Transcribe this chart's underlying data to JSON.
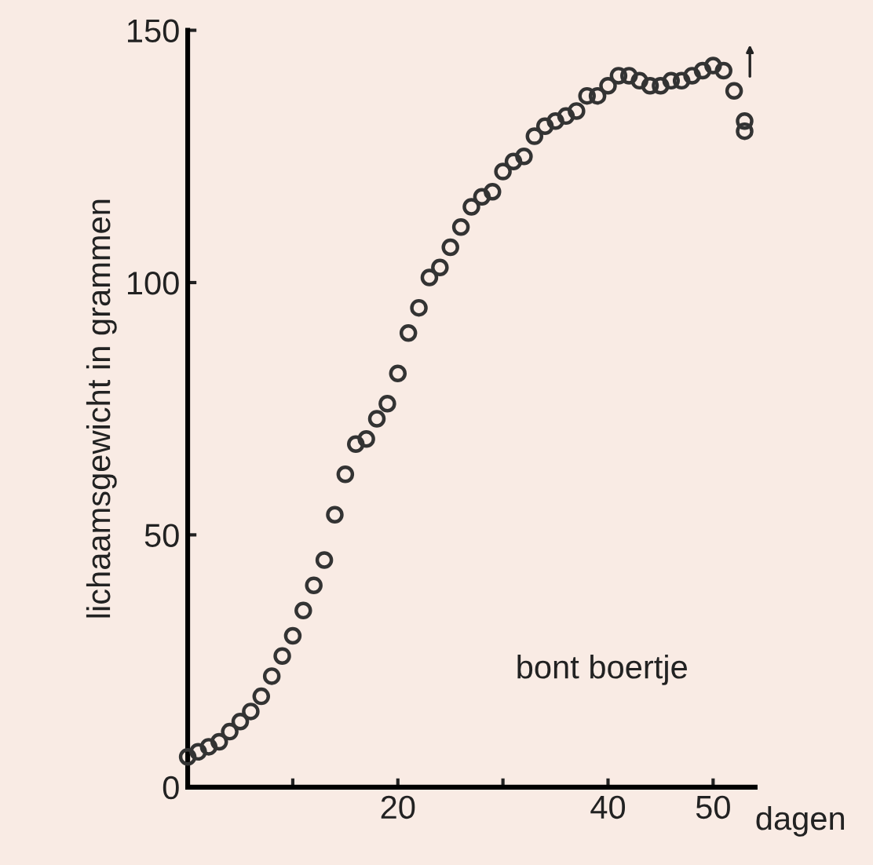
{
  "chart_data": {
    "type": "scatter",
    "xlabel": "dagen",
    "ylabel": "lichaamsgewicht in grammen",
    "annotations": [
      "bont boertje"
    ],
    "x": [
      0,
      1,
      2,
      3,
      4,
      5,
      6,
      7,
      8,
      9,
      10,
      11,
      12,
      13,
      14,
      15,
      16,
      17,
      18,
      19,
      20,
      21,
      22,
      23,
      24,
      25,
      26,
      27,
      28,
      29,
      30,
      31,
      32,
      33,
      34,
      35,
      36,
      37,
      38,
      39,
      40,
      41,
      42,
      43,
      44,
      45,
      46,
      47,
      48,
      49,
      50,
      51,
      52,
      53,
      53
    ],
    "series": [
      {
        "color": "#333333",
        "values": [
          6,
          7,
          8,
          9,
          11,
          13,
          15,
          18,
          22,
          26,
          30,
          35,
          40,
          45,
          54,
          62,
          68,
          69,
          73,
          76,
          82,
          90,
          95,
          101,
          103,
          107,
          111,
          115,
          117,
          118,
          122,
          124,
          125,
          129,
          131,
          132,
          133,
          134,
          137,
          137,
          139,
          141,
          141,
          140,
          139,
          139,
          140,
          140,
          141,
          142,
          143,
          142,
          138,
          132,
          130
        ]
      }
    ],
    "marker": "circle",
    "grid": false,
    "legend": false,
    "xlim": [
      0,
      54
    ],
    "ylim": [
      0,
      150
    ],
    "xticks": [
      {
        "value": 10,
        "label": null
      },
      20,
      {
        "value": 30,
        "label": null
      },
      40,
      50
    ],
    "yticks": [
      0,
      50,
      100,
      150
    ]
  }
}
